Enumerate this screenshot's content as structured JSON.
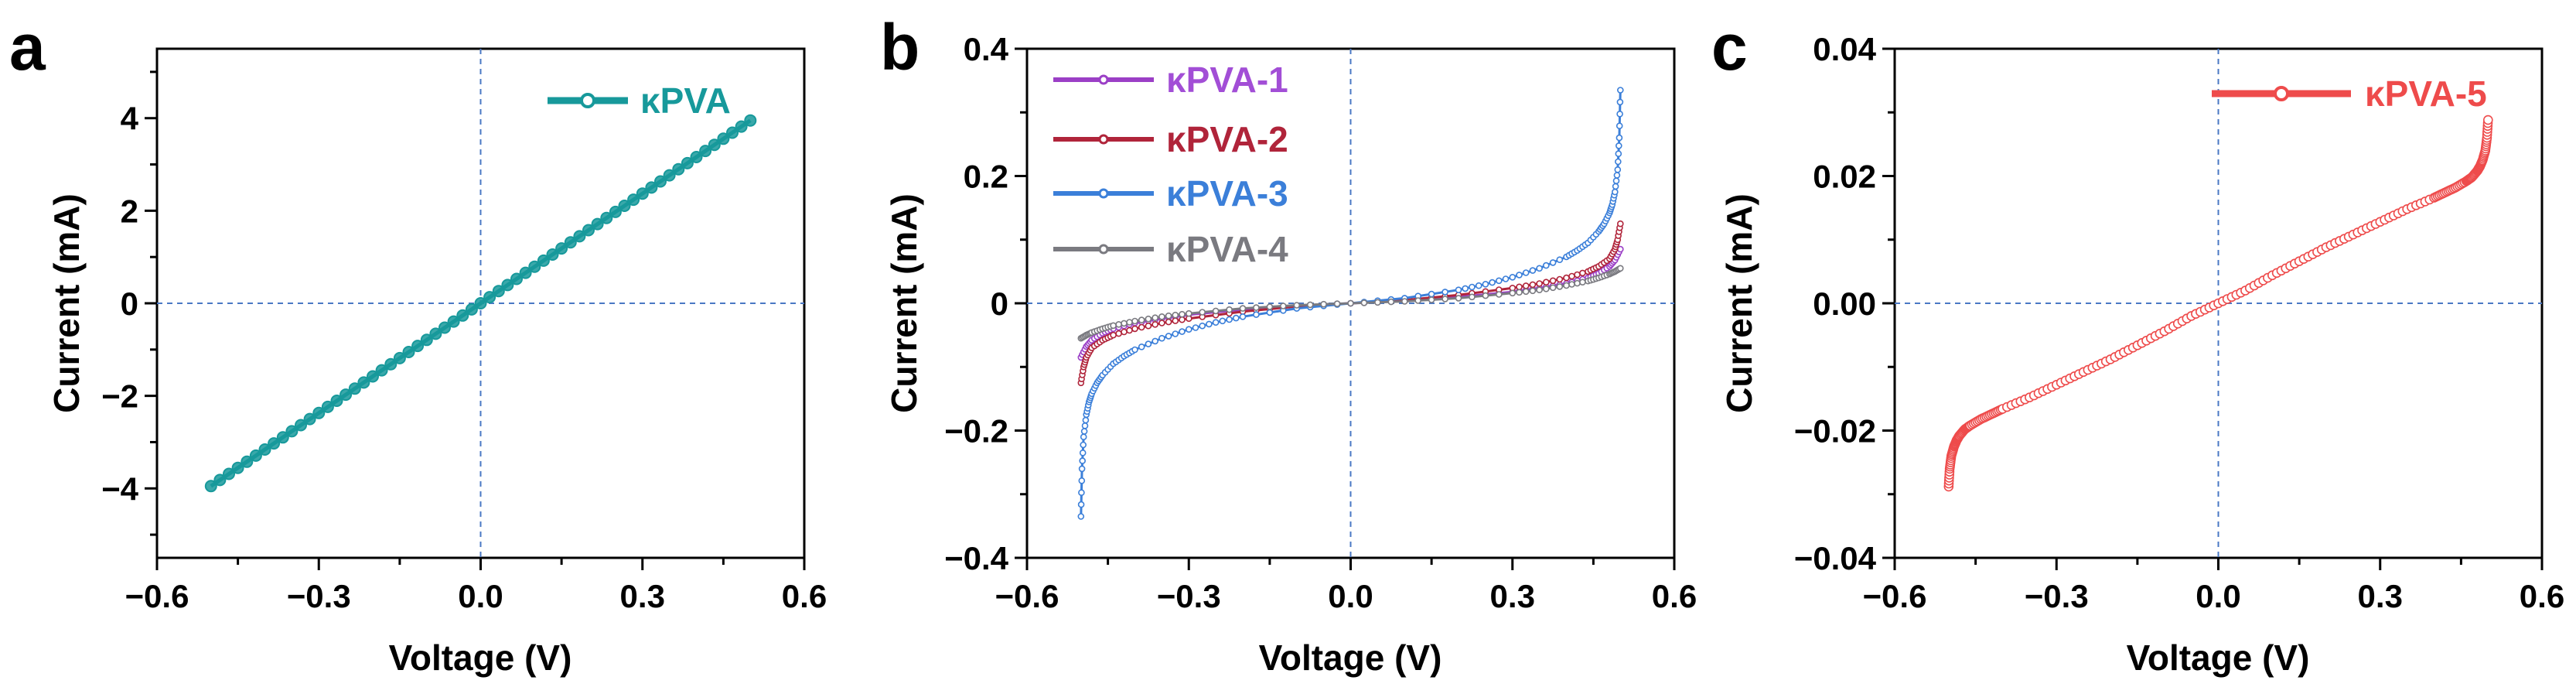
{
  "chart_data": [
    {
      "panel": "a",
      "type": "line",
      "xlabel": "Voltage (V)",
      "ylabel": "Current (mA)",
      "xlim": [
        -0.6,
        0.6
      ],
      "ylim": [
        -5.5,
        5.5
      ],
      "xticks": [
        -0.6,
        -0.3,
        0.0,
        0.3,
        0.6
      ],
      "xtick_labels": [
        "−0.6",
        "−0.3",
        "0.0",
        "0.3",
        "0.6"
      ],
      "yticks": [
        -4,
        -2,
        0,
        2,
        4
      ],
      "ytick_labels": [
        "−4",
        "−2",
        "0",
        "2",
        "4"
      ],
      "reference_lines": {
        "x": 0,
        "y": 0
      },
      "legend_position": "top-right",
      "series": [
        {
          "name": "κPVA",
          "color": "#17999b",
          "x": [
            -0.5,
            -0.4,
            -0.3,
            -0.2,
            -0.1,
            0.0,
            0.1,
            0.2,
            0.3,
            0.4,
            0.5
          ],
          "y": [
            -3.95,
            -3.16,
            -2.37,
            -1.58,
            -0.79,
            0.0,
            0.79,
            1.58,
            2.37,
            3.16,
            3.95
          ]
        }
      ]
    },
    {
      "panel": "b",
      "type": "line",
      "xlabel": "Voltage (V)",
      "ylabel": "Current (mA)",
      "xlim": [
        -0.6,
        0.6
      ],
      "ylim": [
        -0.4,
        0.4
      ],
      "xticks": [
        -0.6,
        -0.3,
        0.0,
        0.3,
        0.6
      ],
      "xtick_labels": [
        "−0.6",
        "−0.3",
        "0.0",
        "0.3",
        "0.6"
      ],
      "yticks": [
        -0.4,
        -0.2,
        0,
        0.2,
        0.4
      ],
      "ytick_labels": [
        "−0.4",
        "−0.2",
        "0",
        "0.2",
        "0.4"
      ],
      "reference_lines": {
        "x": 0,
        "y": 0
      },
      "legend_position": "top-left",
      "series": [
        {
          "name": "κPVA-1",
          "color": "#9b3fc6",
          "x": [
            -0.5,
            -0.49,
            -0.48,
            -0.46,
            -0.44,
            -0.4,
            -0.35,
            -0.3,
            -0.2,
            -0.1,
            0.0,
            0.1,
            0.2,
            0.3,
            0.35,
            0.4,
            0.44,
            0.46,
            0.48,
            0.49,
            0.5
          ],
          "y": [
            -0.085,
            -0.068,
            -0.058,
            -0.047,
            -0.04,
            -0.031,
            -0.024,
            -0.018,
            -0.01,
            -0.004,
            0.0,
            0.004,
            0.01,
            0.018,
            0.024,
            0.031,
            0.04,
            0.047,
            0.058,
            0.068,
            0.085
          ]
        },
        {
          "name": "κPVA-2",
          "color": "#b0243a",
          "x": [
            -0.5,
            -0.495,
            -0.49,
            -0.48,
            -0.46,
            -0.44,
            -0.4,
            -0.35,
            -0.3,
            -0.2,
            -0.1,
            0.0,
            0.1,
            0.2,
            0.3,
            0.35,
            0.4,
            0.44,
            0.46,
            0.48,
            0.49,
            0.495,
            0.5
          ],
          "y": [
            -0.125,
            -0.1,
            -0.085,
            -0.07,
            -0.058,
            -0.05,
            -0.04,
            -0.031,
            -0.024,
            -0.013,
            -0.005,
            0.0,
            0.005,
            0.013,
            0.024,
            0.031,
            0.04,
            0.05,
            0.058,
            0.07,
            0.085,
            0.1,
            0.125
          ]
        },
        {
          "name": "κPVA-3",
          "color": "#3b7fd9",
          "x": [
            -0.5,
            -0.498,
            -0.495,
            -0.49,
            -0.485,
            -0.48,
            -0.47,
            -0.46,
            -0.44,
            -0.42,
            -0.4,
            -0.35,
            -0.3,
            -0.25,
            -0.2,
            -0.1,
            0.0,
            0.1,
            0.2,
            0.25,
            0.3,
            0.35,
            0.4,
            0.42,
            0.44,
            0.46,
            0.47,
            0.48,
            0.485,
            0.49,
            0.495,
            0.498,
            0.5
          ],
          "y": [
            -0.335,
            -0.26,
            -0.21,
            -0.175,
            -0.155,
            -0.142,
            -0.125,
            -0.113,
            -0.095,
            -0.083,
            -0.073,
            -0.055,
            -0.041,
            -0.03,
            -0.021,
            -0.008,
            0.0,
            0.008,
            0.021,
            0.03,
            0.041,
            0.055,
            0.073,
            0.083,
            0.095,
            0.113,
            0.125,
            0.142,
            0.155,
            0.175,
            0.21,
            0.26,
            0.335
          ]
        },
        {
          "name": "κPVA-4",
          "color": "#7a7a80",
          "x": [
            -0.5,
            -0.49,
            -0.48,
            -0.46,
            -0.44,
            -0.4,
            -0.35,
            -0.3,
            -0.2,
            -0.1,
            0.0,
            0.1,
            0.2,
            0.3,
            0.35,
            0.4,
            0.44,
            0.46,
            0.48,
            0.49,
            0.5
          ],
          "y": [
            -0.055,
            -0.05,
            -0.046,
            -0.04,
            -0.035,
            -0.028,
            -0.021,
            -0.016,
            -0.008,
            -0.003,
            0.0,
            0.003,
            0.008,
            0.016,
            0.021,
            0.028,
            0.035,
            0.04,
            0.046,
            0.05,
            0.055
          ]
        }
      ]
    },
    {
      "panel": "c",
      "type": "line",
      "xlabel": "Voltage (V)",
      "ylabel": "Current (mA)",
      "xlim": [
        -0.6,
        0.6
      ],
      "ylim": [
        -0.04,
        0.04
      ],
      "xticks": [
        -0.6,
        -0.3,
        0.0,
        0.3,
        0.6
      ],
      "xtick_labels": [
        "−0.6",
        "−0.3",
        "0.0",
        "0.3",
        "0.6"
      ],
      "yticks": [
        -0.04,
        -0.02,
        0,
        0.02,
        0.04
      ],
      "ytick_labels": [
        "−0.04",
        "−0.02",
        "0.00",
        "0.02",
        "0.04"
      ],
      "reference_lines": {
        "x": 0,
        "y": 0
      },
      "legend_position": "top-right",
      "series": [
        {
          "name": "κPVA-5",
          "color": "#ee4b4b",
          "x": [
            -0.5,
            -0.498,
            -0.495,
            -0.49,
            -0.485,
            -0.48,
            -0.47,
            -0.46,
            -0.44,
            -0.42,
            -0.4,
            -0.35,
            -0.3,
            -0.25,
            -0.2,
            -0.15,
            -0.1,
            -0.05,
            0.0,
            0.05,
            0.1,
            0.15,
            0.2,
            0.25,
            0.3,
            0.35,
            0.4,
            0.42,
            0.44,
            0.46,
            0.47,
            0.48,
            0.485,
            0.49,
            0.495,
            0.498,
            0.5
          ],
          "y": [
            -0.0288,
            -0.026,
            -0.024,
            -0.0225,
            -0.0215,
            -0.0208,
            -0.0198,
            -0.0192,
            -0.0182,
            -0.0174,
            -0.0166,
            -0.0148,
            -0.0128,
            -0.0108,
            -0.0088,
            -0.0066,
            -0.0044,
            -0.002,
            0.0,
            0.002,
            0.0044,
            0.0066,
            0.0088,
            0.0108,
            0.0128,
            0.0148,
            0.0166,
            0.0174,
            0.0182,
            0.0192,
            0.0198,
            0.0208,
            0.0215,
            0.0225,
            0.024,
            0.026,
            0.0288
          ]
        }
      ]
    }
  ]
}
